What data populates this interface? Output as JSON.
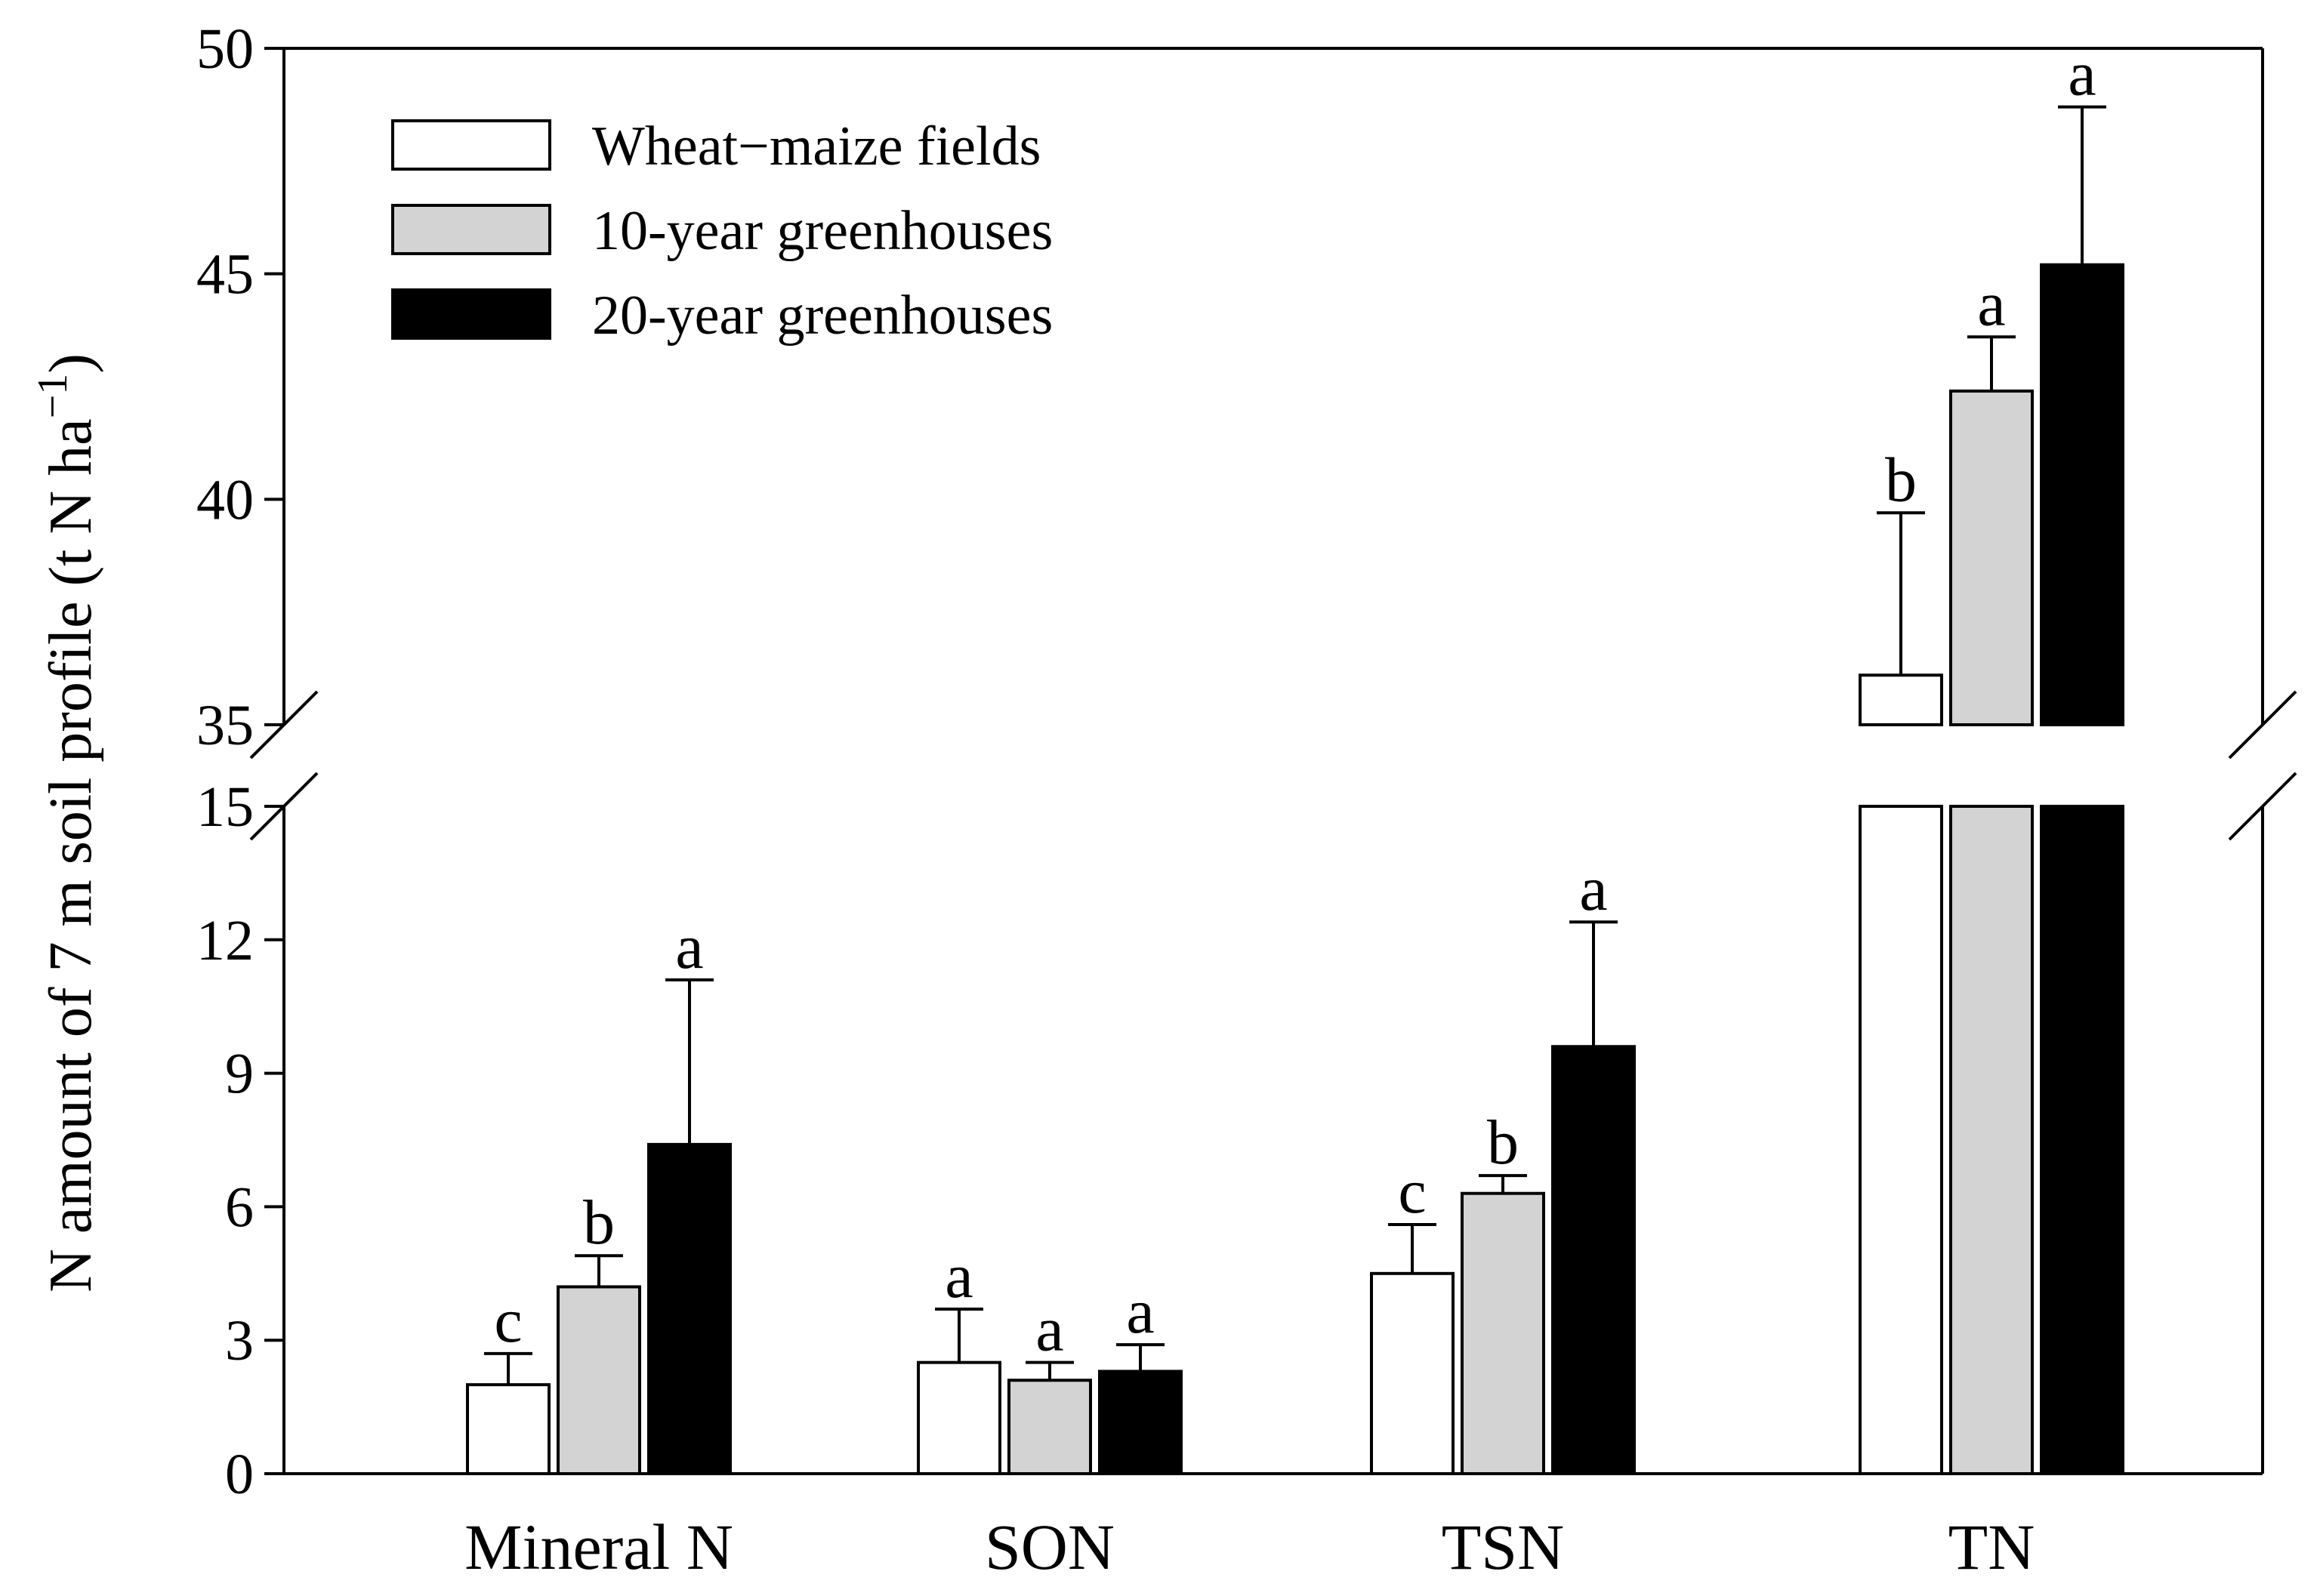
{
  "chart_data": {
    "type": "bar",
    "ylabel_main": "N amount of 7 m soil profile (t N ha",
    "ylabel_sup": "−1",
    "ylabel_close": ")",
    "categories": [
      "Mineral N",
      "SON",
      "TSN",
      "TN"
    ],
    "series": [
      {
        "name": "Wheat−maize fields",
        "color": "#ffffff",
        "values": [
          2.0,
          2.5,
          4.5,
          36.1
        ],
        "errors": [
          0.7,
          1.2,
          1.1,
          3.6
        ],
        "sig": [
          "c",
          "a",
          "c",
          "b"
        ]
      },
      {
        "name": "10-year greenhouses",
        "color": "#d3d3d3",
        "values": [
          4.2,
          2.1,
          6.3,
          42.4
        ],
        "errors": [
          0.7,
          0.4,
          0.4,
          1.2
        ],
        "sig": [
          "b",
          "a",
          "b",
          "a"
        ]
      },
      {
        "name": "20-year greenhouses",
        "color": "#000000",
        "values": [
          7.4,
          2.3,
          9.6,
          45.2
        ],
        "errors": [
          3.7,
          0.6,
          2.8,
          3.5
        ],
        "sig": [
          "a",
          "a",
          "a",
          "a"
        ]
      }
    ],
    "lower_axis": {
      "ylim": [
        0,
        15
      ],
      "ticks": [
        "0",
        "3",
        "6",
        "9",
        "12",
        "15"
      ]
    },
    "upper_axis": {
      "ylim": [
        35,
        50
      ],
      "ticks": [
        "35",
        "40",
        "45",
        "50"
      ]
    },
    "axis_break": true,
    "legend_position": "top-left",
    "grid": false
  }
}
